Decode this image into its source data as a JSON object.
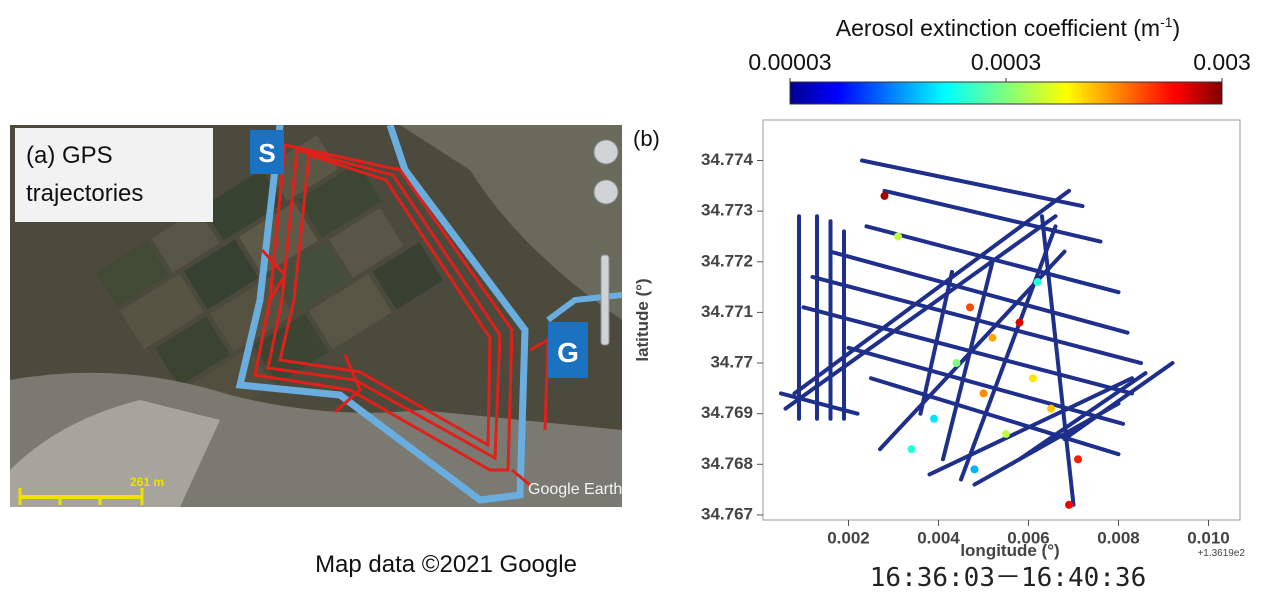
{
  "panel_a": {
    "label_lines": [
      "(a) GPS",
      "trajectories"
    ],
    "start_marker": "S",
    "goal_marker": "G",
    "scale": "261 m",
    "watermark": "Google Earth",
    "caption": "Map data ©2021 Google"
  },
  "chart_data": {
    "type": "trajectory",
    "panel_label": "(b)",
    "xlabel": "longitude (°)",
    "ylabel": "latitude (°)",
    "x_offset": "+1.3619e2",
    "xlim": [
      0.0001,
      0.0107
    ],
    "ylim": [
      34.7669,
      34.7748
    ],
    "xticks": [
      0.002,
      0.004,
      0.006,
      0.008,
      {
        "value": 0.01,
        "label": "0.010"
      }
    ],
    "yticks": [
      34.767,
      34.768,
      34.769,
      34.77,
      34.771,
      34.772,
      34.773,
      34.774
    ],
    "track_color": "#1f2f8c",
    "tracks": [
      {
        "x": [
          0.0023,
          0.0072
        ],
        "y": [
          34.774,
          34.7731
        ]
      },
      {
        "x": [
          0.0028,
          0.0076
        ],
        "y": [
          34.7734,
          34.7724
        ]
      },
      {
        "x": [
          0.0024,
          0.008
        ],
        "y": [
          34.7727,
          34.7714
        ]
      },
      {
        "x": [
          0.0016,
          0.0082
        ],
        "y": [
          34.7722,
          34.7706
        ]
      },
      {
        "x": [
          0.0012,
          0.0085
        ],
        "y": [
          34.7717,
          34.77
        ]
      },
      {
        "x": [
          0.001,
          0.0083
        ],
        "y": [
          34.7711,
          34.7694
        ]
      },
      {
        "x": [
          0.002,
          0.0081
        ],
        "y": [
          34.7703,
          34.7688
        ]
      },
      {
        "x": [
          0.0025,
          0.008
        ],
        "y": [
          34.7697,
          34.7682
        ]
      },
      {
        "x": [
          0.0006,
          0.0066
        ],
        "y": [
          34.7691,
          34.7729
        ]
      },
      {
        "x": [
          0.0008,
          0.0069
        ],
        "y": [
          34.7694,
          34.7734
        ]
      },
      {
        "x": [
          0.0027,
          0.0068
        ],
        "y": [
          34.7683,
          34.7722
        ]
      },
      {
        "x": [
          0.0038,
          0.0083
        ],
        "y": [
          34.7678,
          34.7697
        ]
      },
      {
        "x": [
          0.0048,
          0.008
        ],
        "y": [
          34.7676,
          34.7692
        ]
      },
      {
        "x": [
          0.0058,
          0.0086
        ],
        "y": [
          34.7681,
          34.7698
        ]
      },
      {
        "x": [
          0.0068,
          0.0092
        ],
        "y": [
          34.7685,
          34.77
        ]
      },
      {
        "x": [
          0.0009,
          0.0009
        ],
        "y": [
          34.7729,
          34.7689
        ]
      },
      {
        "x": [
          0.0013,
          0.0013
        ],
        "y": [
          34.7729,
          34.7689
        ]
      },
      {
        "x": [
          0.0016,
          0.0016
        ],
        "y": [
          34.7728,
          34.7689
        ]
      },
      {
        "x": [
          0.0019,
          0.0019
        ],
        "y": [
          34.7726,
          34.7689
        ]
      },
      {
        "x": [
          0.0043,
          0.0036
        ],
        "y": [
          34.7718,
          34.769
        ]
      },
      {
        "x": [
          0.0052,
          0.0041
        ],
        "y": [
          34.772,
          34.7681
        ]
      },
      {
        "x": [
          0.0063,
          0.007
        ],
        "y": [
          34.7729,
          34.7672
        ]
      },
      {
        "x": [
          0.0066,
          0.0045
        ],
        "y": [
          34.7727,
          34.7677
        ]
      },
      {
        "x": [
          0.0005,
          0.0022
        ],
        "y": [
          34.7694,
          34.769
        ]
      }
    ],
    "samples": {
      "x": [
        0.0031,
        0.0047,
        0.0052,
        0.0058,
        0.0061,
        0.0044,
        0.0039,
        0.0065,
        0.0055,
        0.0034,
        0.0071,
        0.005,
        0.0028,
        0.0062,
        0.0048,
        0.0069
      ],
      "y": [
        34.7725,
        34.7711,
        34.7705,
        34.7708,
        34.7697,
        34.77,
        34.7689,
        34.7691,
        34.7686,
        34.7683,
        34.7681,
        34.7694,
        34.7733,
        34.7716,
        34.7679,
        34.7672
      ],
      "values": [
        0.0004,
        0.0012,
        0.0008,
        0.002,
        0.0006,
        0.0003,
        0.00015,
        0.0007,
        0.0004,
        0.0002,
        0.0015,
        0.0009,
        0.0025,
        0.0002,
        0.00012,
        0.0018
      ]
    },
    "colorbar": {
      "title": "Aerosol extinction coefficient (m",
      "title_exponent": "-1",
      "title_close": ")",
      "log": true,
      "clim": [
        3e-05,
        0.003
      ],
      "ticks": [
        {
          "value": 3e-05,
          "label": "0.00003"
        },
        0.0003,
        0.003
      ]
    },
    "time_range": "16:36:03－16:40:36"
  }
}
